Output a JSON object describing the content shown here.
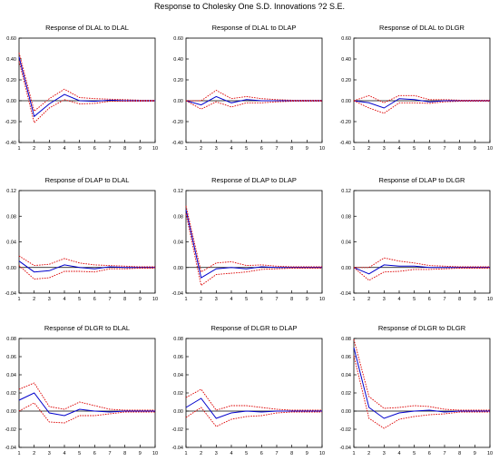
{
  "title": "Response to Cholesky One S.D. Innovations ?2 S.E.",
  "colors": {
    "response": "#0000cc",
    "band": "#dd0000",
    "zero": "#000000"
  },
  "chart_data": [
    {
      "type": "line",
      "title": "Response of DLAL to DLAL",
      "x": [
        1,
        2,
        3,
        4,
        5,
        6,
        7,
        8,
        9,
        10
      ],
      "ylim": [
        -0.4,
        0.6
      ],
      "yticks": [
        "0.60",
        "0.40",
        "0.20",
        "0.00",
        "-0.20",
        "-0.40"
      ],
      "ytick_values": [
        0.6,
        0.4,
        0.2,
        0,
        -0.2,
        -0.4
      ],
      "series": [
        {
          "values": [
            0.42,
            -0.15,
            -0.03,
            0.06,
            0.0,
            -0.005,
            0.005,
            0,
            0,
            0
          ]
        },
        {
          "values": [
            0.46,
            -0.1,
            0.02,
            0.11,
            0.03,
            0.02,
            0.015,
            0.01,
            0.005,
            0.005
          ]
        },
        {
          "values": [
            0.38,
            -0.21,
            -0.07,
            0.01,
            -0.03,
            -0.025,
            -0.005,
            -0.005,
            -0.005,
            -0.005
          ]
        }
      ]
    },
    {
      "type": "line",
      "title": "Response of DLAL to DLAP",
      "x": [
        1,
        2,
        3,
        4,
        5,
        6,
        7,
        8,
        9,
        10
      ],
      "ylim": [
        -0.4,
        0.6
      ],
      "yticks": [
        "0.60",
        "0.40",
        "0.20",
        "0.00",
        "-0.20",
        "-0.40"
      ],
      "ytick_values": [
        0.6,
        0.4,
        0.2,
        0,
        -0.2,
        -0.4
      ],
      "series": [
        {
          "values": [
            0,
            -0.04,
            0.04,
            -0.02,
            0.01,
            0,
            0,
            0,
            0,
            0
          ]
        },
        {
          "values": [
            0,
            0.0,
            0.1,
            0.02,
            0.04,
            0.02,
            0.01,
            0.005,
            0.005,
            0.005
          ]
        },
        {
          "values": [
            0,
            -0.08,
            -0.01,
            -0.06,
            -0.02,
            -0.02,
            -0.01,
            -0.005,
            -0.005,
            -0.005
          ]
        }
      ]
    },
    {
      "type": "line",
      "title": "Response of DLAL to DLGR",
      "x": [
        1,
        2,
        3,
        4,
        5,
        6,
        7,
        8,
        9,
        10
      ],
      "ylim": [
        -0.4,
        0.6
      ],
      "yticks": [
        "0.60",
        "0.40",
        "0.20",
        "0.00",
        "-0.20",
        "-0.40"
      ],
      "ytick_values": [
        0.6,
        0.4,
        0.2,
        0,
        -0.2,
        -0.4
      ],
      "series": [
        {
          "values": [
            0,
            -0.02,
            -0.07,
            0.02,
            0.01,
            -0.01,
            0,
            0,
            0,
            0
          ]
        },
        {
          "values": [
            0,
            0.05,
            -0.02,
            0.05,
            0.05,
            0.01,
            0.01,
            0.005,
            0.005,
            0.005
          ]
        },
        {
          "values": [
            0,
            -0.07,
            -0.12,
            -0.02,
            -0.02,
            -0.025,
            -0.01,
            -0.005,
            -0.005,
            -0.005
          ]
        }
      ]
    },
    {
      "type": "line",
      "title": "Response of DLAP to DLAL",
      "x": [
        1,
        2,
        3,
        4,
        5,
        6,
        7,
        8,
        9,
        10
      ],
      "ylim": [
        -0.04,
        0.12
      ],
      "yticks": [
        "0.12",
        "0.08",
        "0.04",
        "0.00",
        "-0.04"
      ],
      "ytick_values": [
        0.12,
        0.08,
        0.04,
        0,
        -0.04
      ],
      "series": [
        {
          "values": [
            0.01,
            -0.007,
            -0.005,
            0.004,
            0,
            -0.002,
            0.001,
            0,
            0,
            0
          ]
        },
        {
          "values": [
            0.018,
            0.003,
            0.005,
            0.014,
            0.007,
            0.004,
            0.003,
            0.002,
            0.001,
            0.001
          ]
        },
        {
          "values": [
            0.003,
            -0.018,
            -0.016,
            -0.006,
            -0.006,
            -0.007,
            -0.002,
            -0.002,
            -0.001,
            -0.001
          ]
        }
      ]
    },
    {
      "type": "line",
      "title": "Response of DLAP to DLAP",
      "x": [
        1,
        2,
        3,
        4,
        5,
        6,
        7,
        8,
        9,
        10
      ],
      "ylim": [
        -0.04,
        0.12
      ],
      "yticks": [
        "0.12",
        "0.08",
        "0.04",
        "0.00",
        "-0.04"
      ],
      "ytick_values": [
        0.12,
        0.08,
        0.04,
        0,
        -0.04
      ],
      "series": [
        {
          "values": [
            0.09,
            -0.016,
            -0.002,
            0.0,
            -0.002,
            0.001,
            0,
            0,
            0,
            0
          ]
        },
        {
          "values": [
            0.096,
            -0.007,
            0.007,
            0.009,
            0.003,
            0.004,
            0.002,
            0.001,
            0.001,
            0.001
          ]
        },
        {
          "values": [
            0.084,
            -0.028,
            -0.011,
            -0.009,
            -0.007,
            -0.003,
            -0.002,
            -0.001,
            -0.001,
            -0.001
          ]
        }
      ]
    },
    {
      "type": "line",
      "title": "Response of DLAP to DLGR",
      "x": [
        1,
        2,
        3,
        4,
        5,
        6,
        7,
        8,
        9,
        10
      ],
      "ylim": [
        -0.04,
        0.12
      ],
      "yticks": [
        "0.12",
        "0.08",
        "0.04",
        "0.00",
        "-0.04"
      ],
      "ytick_values": [
        0.12,
        0.08,
        0.04,
        0,
        -0.04
      ],
      "series": [
        {
          "values": [
            0,
            -0.01,
            0.004,
            0.002,
            0.002,
            0,
            0,
            0,
            0,
            0
          ]
        },
        {
          "values": [
            0,
            0.0,
            0.015,
            0.01,
            0.007,
            0.003,
            0.002,
            0.001,
            0.001,
            0.001
          ]
        },
        {
          "values": [
            0,
            -0.02,
            -0.007,
            -0.006,
            -0.003,
            -0.003,
            -0.002,
            -0.001,
            -0.001,
            -0.001
          ]
        }
      ]
    },
    {
      "type": "line",
      "title": "Response of DLGR to DLAL",
      "x": [
        1,
        2,
        3,
        4,
        5,
        6,
        7,
        8,
        9,
        10
      ],
      "ylim": [
        -0.04,
        0.08
      ],
      "yticks": [
        "0.08",
        "0.06",
        "0.04",
        "0.02",
        "0.00",
        "-0.02",
        "-0.04"
      ],
      "ytick_values": [
        0.08,
        0.06,
        0.04,
        0.02,
        0,
        -0.02,
        -0.04
      ],
      "series": [
        {
          "values": [
            0.012,
            0.02,
            -0.002,
            -0.005,
            0.002,
            0.0,
            -0.001,
            0,
            0,
            0
          ]
        },
        {
          "values": [
            0.024,
            0.031,
            0.005,
            0.002,
            0.01,
            0.006,
            0.002,
            0.001,
            0.001,
            0.001
          ]
        },
        {
          "values": [
            0.0,
            0.009,
            -0.012,
            -0.013,
            -0.005,
            -0.005,
            -0.003,
            -0.001,
            -0.001,
            -0.001
          ]
        }
      ]
    },
    {
      "type": "line",
      "title": "Response of DLGR to DLAP",
      "x": [
        1,
        2,
        3,
        4,
        5,
        6,
        7,
        8,
        9,
        10
      ],
      "ylim": [
        -0.04,
        0.08
      ],
      "yticks": [
        "0.08",
        "0.06",
        "0.04",
        "0.02",
        "0.00",
        "-0.02",
        "-0.04"
      ],
      "ytick_values": [
        0.08,
        0.06,
        0.04,
        0.02,
        0,
        -0.02,
        -0.04
      ],
      "series": [
        {
          "values": [
            0.004,
            0.014,
            -0.008,
            -0.002,
            0.0,
            -0.001,
            0,
            0,
            0,
            0
          ]
        },
        {
          "values": [
            0.015,
            0.024,
            0.001,
            0.006,
            0.006,
            0.004,
            0.002,
            0.001,
            0.001,
            0.001
          ]
        },
        {
          "values": [
            -0.007,
            0.004,
            -0.017,
            -0.009,
            -0.006,
            -0.005,
            -0.002,
            -0.001,
            -0.001,
            -0.001
          ]
        }
      ]
    },
    {
      "type": "line",
      "title": "Response of DLGR to DLGR",
      "x": [
        1,
        2,
        3,
        4,
        5,
        6,
        7,
        8,
        9,
        10
      ],
      "ylim": [
        -0.04,
        0.08
      ],
      "yticks": [
        "0.08",
        "0.06",
        "0.04",
        "0.02",
        "0.00",
        "-0.02",
        "-0.04"
      ],
      "ytick_values": [
        0.08,
        0.06,
        0.04,
        0.02,
        0,
        -0.02,
        -0.04
      ],
      "series": [
        {
          "values": [
            0.07,
            0.004,
            -0.008,
            -0.002,
            0.0,
            0.001,
            -0.001,
            0,
            0,
            0
          ]
        },
        {
          "values": [
            0.079,
            0.016,
            0.003,
            0.004,
            0.006,
            0.005,
            0.002,
            0.001,
            0.001,
            0.001
          ]
        },
        {
          "values": [
            0.061,
            -0.008,
            -0.019,
            -0.009,
            -0.006,
            -0.004,
            -0.003,
            -0.001,
            -0.001,
            -0.001
          ]
        }
      ]
    }
  ]
}
